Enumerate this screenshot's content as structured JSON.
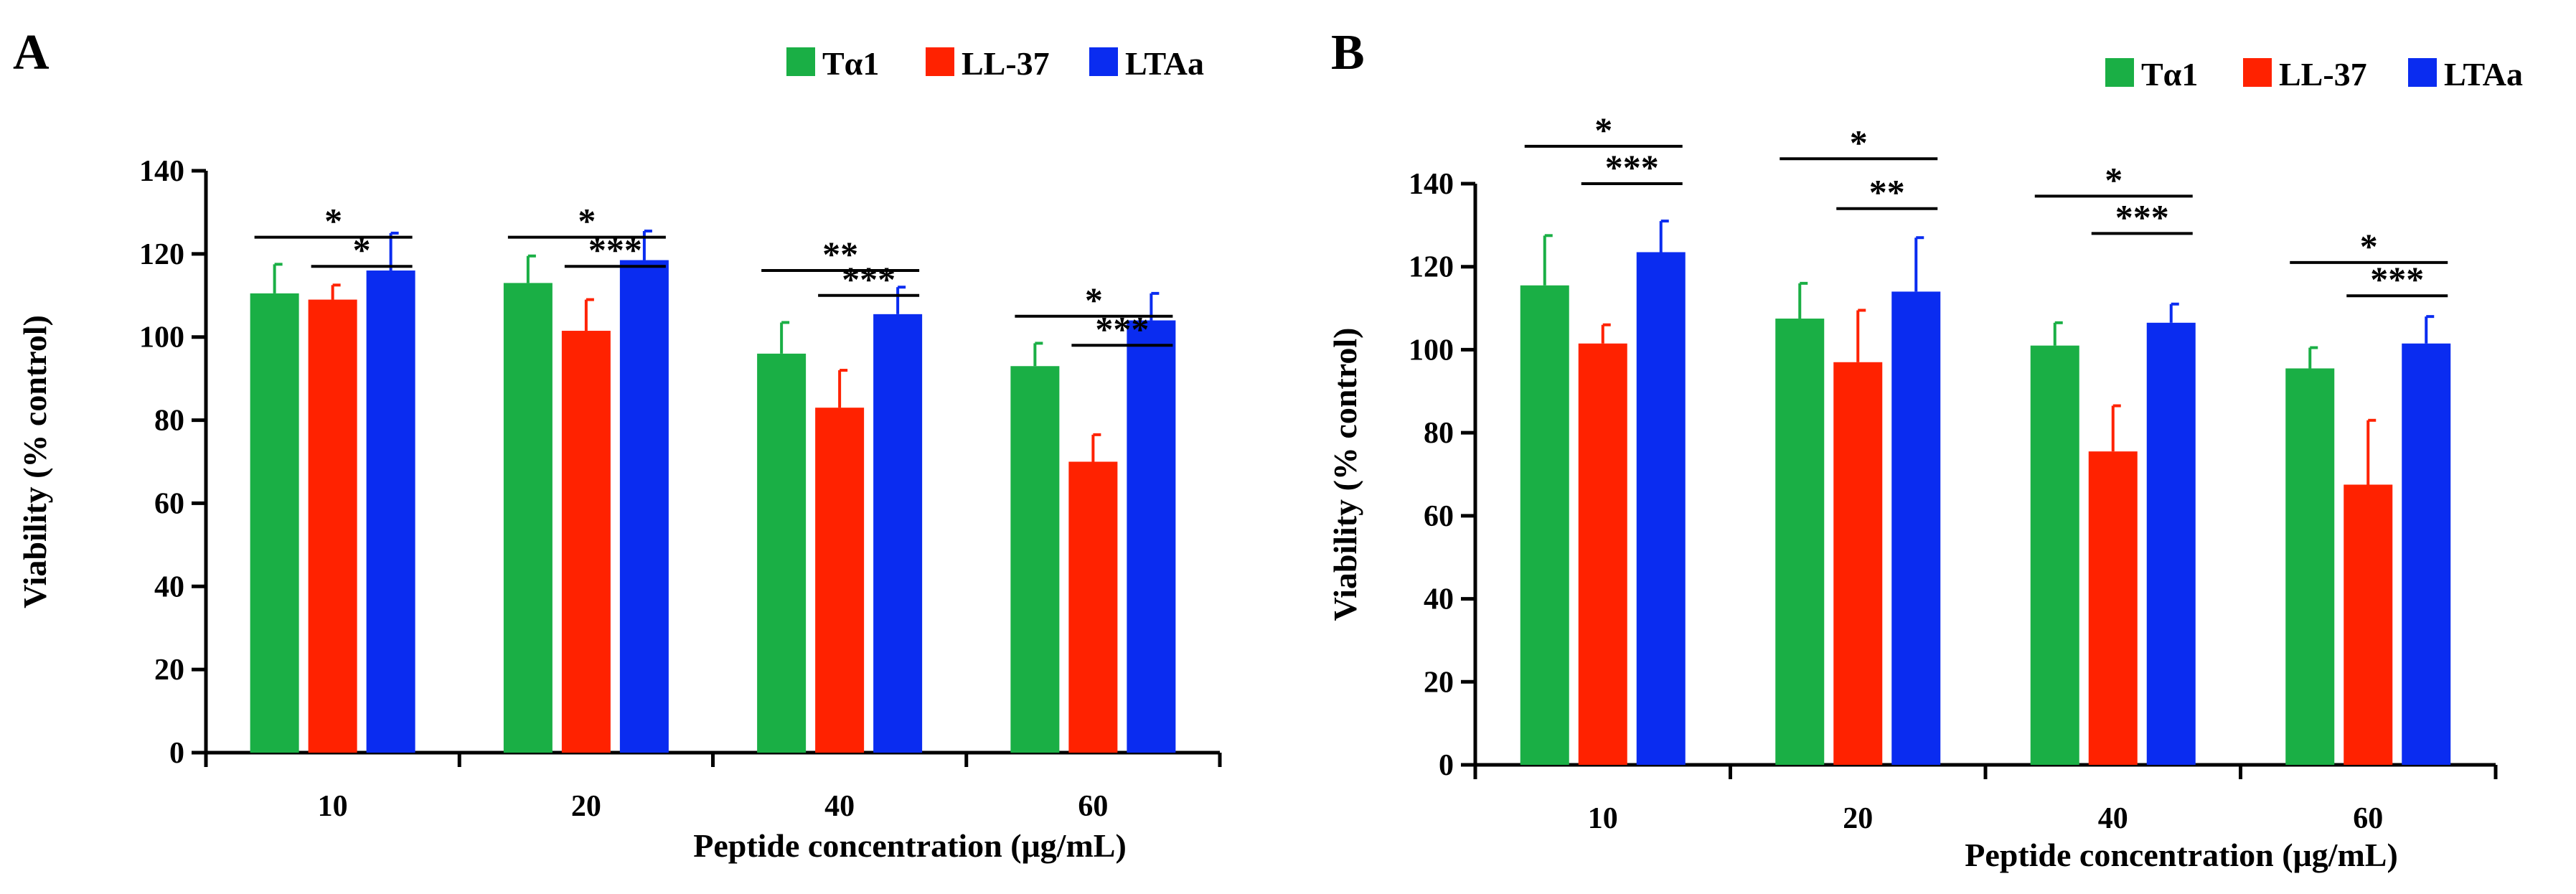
{
  "chart_data": [
    {
      "panel": "A",
      "type": "bar",
      "categories": [
        "10",
        "20",
        "40",
        "60"
      ],
      "series": [
        {
          "name": "Tα1",
          "color": "#1aaf45",
          "values": [
            110.5,
            113,
            96,
            93
          ],
          "errors": [
            7,
            6.5,
            7.5,
            5.5
          ]
        },
        {
          "name": "LL-37",
          "color": "#ff2200",
          "values": [
            109,
            101.5,
            83,
            70
          ],
          "errors": [
            3.5,
            7.5,
            9,
            6.5
          ]
        },
        {
          "name": "LTAa",
          "color": "#0a2cf0",
          "values": [
            116,
            118.5,
            105.5,
            104
          ],
          "errors": [
            9,
            7,
            6.5,
            6.5
          ]
        }
      ],
      "significance": [
        [
          {
            "from": 0,
            "to": 2,
            "label": "*",
            "level": 124
          },
          {
            "from": 1,
            "to": 2,
            "label": "*",
            "level": 117
          }
        ],
        [
          {
            "from": 0,
            "to": 2,
            "label": "*",
            "level": 124
          },
          {
            "from": 1,
            "to": 2,
            "label": "***",
            "level": 117
          }
        ],
        [
          {
            "from": 0,
            "to": 2,
            "label": "**",
            "level": 116
          },
          {
            "from": 1,
            "to": 2,
            "label": "***",
            "level": 110
          }
        ],
        [
          {
            "from": 0,
            "to": 2,
            "label": "*",
            "level": 105
          },
          {
            "from": 1,
            "to": 2,
            "label": "***",
            "level": 98
          }
        ]
      ],
      "xlabel": "Peptide concentration (μg/mL)",
      "ylabel": "Viability (% control)",
      "ylim": [
        0,
        140
      ],
      "yticks": [
        "0",
        "20",
        "40",
        "60",
        "80",
        "100",
        "120",
        "140"
      ],
      "legend": "top-right"
    },
    {
      "panel": "B",
      "type": "bar",
      "categories": [
        "10",
        "20",
        "40",
        "60"
      ],
      "series": [
        {
          "name": "Tα1",
          "color": "#1aaf45",
          "values": [
            115.5,
            107.5,
            101,
            95.5
          ],
          "errors": [
            12,
            8.5,
            5.5,
            5
          ]
        },
        {
          "name": "LL-37",
          "color": "#ff2200",
          "values": [
            101.5,
            97,
            75.5,
            67.5
          ],
          "errors": [
            4.5,
            12.5,
            11,
            15.5
          ]
        },
        {
          "name": "LTAa",
          "color": "#0a2cf0",
          "values": [
            123.5,
            114,
            106.5,
            101.5
          ],
          "errors": [
            7.5,
            13,
            4.5,
            6.5
          ]
        }
      ],
      "significance": [
        [
          {
            "from": 0,
            "to": 2,
            "label": "*",
            "level": 149
          },
          {
            "from": 1,
            "to": 2,
            "label": "***",
            "level": 140
          }
        ],
        [
          {
            "from": 0,
            "to": 2,
            "label": "*",
            "level": 146
          },
          {
            "from": 1,
            "to": 2,
            "label": "**",
            "level": 134
          }
        ],
        [
          {
            "from": 0,
            "to": 2,
            "label": "*",
            "level": 137
          },
          {
            "from": 1,
            "to": 2,
            "label": "***",
            "level": 128
          }
        ],
        [
          {
            "from": 0,
            "to": 2,
            "label": "*",
            "level": 121
          },
          {
            "from": 1,
            "to": 2,
            "label": "***",
            "level": 113
          }
        ]
      ],
      "xlabel": "Peptide concentration (μg/mL)",
      "ylabel": "Viability (% control)",
      "ylim": [
        0,
        140
      ],
      "yticks": [
        "0",
        "20",
        "40",
        "60",
        "80",
        "100",
        "120",
        "140"
      ],
      "legend": "top-right"
    }
  ]
}
